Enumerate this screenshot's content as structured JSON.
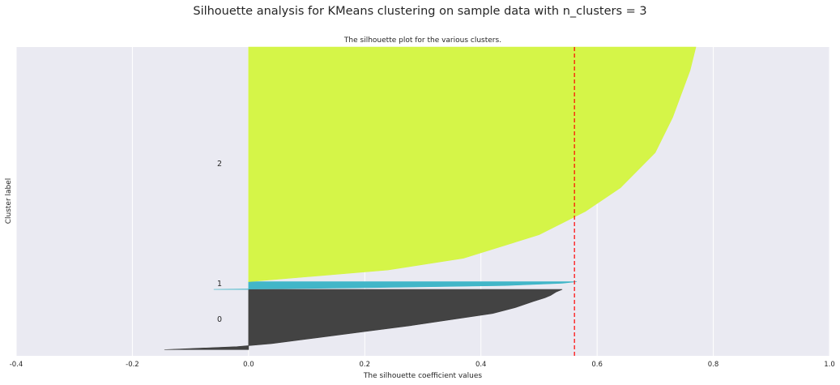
{
  "figure": {
    "suptitle": "Silhouette analysis for KMeans clustering on sample data with n_clusters = 3"
  },
  "chart_data": {
    "type": "area",
    "title": "The silhouette plot for the various clusters.",
    "xlabel": "The silhouette coefficient values",
    "ylabel": "Cluster label",
    "xlim": [
      -0.4,
      1.0
    ],
    "ylim": [
      0,
      1
    ],
    "xticks": [
      "-0.4",
      "-0.2",
      "0.0",
      "0.2",
      "0.4",
      "0.6",
      "0.8",
      "1.0"
    ],
    "xtick_values": [
      -0.4,
      -0.2,
      0.0,
      0.2,
      0.4,
      0.6,
      0.8,
      1.0
    ],
    "yticks": [],
    "grid": true,
    "average_silhouette_score": 0.561,
    "average_line_color": "#ff0000",
    "background_color": "#eaeaf2",
    "clusters": [
      {
        "label": "0",
        "color": "#3d3d3d",
        "y_range": [
          0.02,
          0.215
        ],
        "label_y": 0.118,
        "profile": [
          [
            0.0,
            -0.145
          ],
          [
            0.05,
            -0.02
          ],
          [
            0.1,
            0.04
          ],
          [
            0.2,
            0.12
          ],
          [
            0.3,
            0.2
          ],
          [
            0.4,
            0.28
          ],
          [
            0.5,
            0.35
          ],
          [
            0.6,
            0.42
          ],
          [
            0.7,
            0.46
          ],
          [
            0.8,
            0.49
          ],
          [
            0.86,
            0.51
          ],
          [
            0.9,
            0.52
          ],
          [
            0.96,
            0.53
          ],
          [
            1.0,
            0.54
          ]
        ]
      },
      {
        "label": "1",
        "color": "#3cb4c6",
        "y_range": [
          0.215,
          0.24
        ],
        "label_y": 0.234,
        "profile": [
          [
            0.0,
            -0.06
          ],
          [
            0.2,
            0.18
          ],
          [
            0.5,
            0.44
          ],
          [
            0.8,
            0.54
          ],
          [
            1.0,
            0.565
          ]
        ]
      },
      {
        "label": "2",
        "color": "#d4f542",
        "y_range": [
          0.24,
          1.0
        ],
        "label_y": 0.622,
        "profile": [
          [
            0.0,
            0.0
          ],
          [
            0.05,
            0.24
          ],
          [
            0.1,
            0.37
          ],
          [
            0.2,
            0.5
          ],
          [
            0.3,
            0.58
          ],
          [
            0.35,
            0.61
          ],
          [
            0.4,
            0.64
          ],
          [
            0.45,
            0.66
          ],
          [
            0.5,
            0.68
          ],
          [
            0.55,
            0.7
          ],
          [
            0.6,
            0.71
          ],
          [
            0.7,
            0.73
          ],
          [
            0.8,
            0.745
          ],
          [
            0.9,
            0.76
          ],
          [
            1.0,
            0.77
          ]
        ]
      }
    ]
  }
}
